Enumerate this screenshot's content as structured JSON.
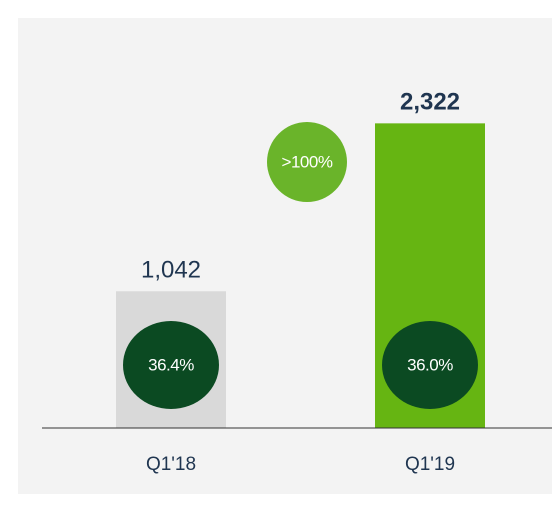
{
  "chart_data": {
    "type": "bar",
    "categories": [
      "Q1'18",
      "Q1'19"
    ],
    "values": [
      1042,
      2322
    ],
    "value_labels": [
      "1,042",
      "2,322"
    ],
    "colors": [
      "#d9d9d9",
      "#66b512"
    ],
    "inner_labels": [
      "36.4%",
      "36.0%"
    ],
    "growth_label": ">100%",
    "ylim": [
      0,
      2500
    ]
  }
}
